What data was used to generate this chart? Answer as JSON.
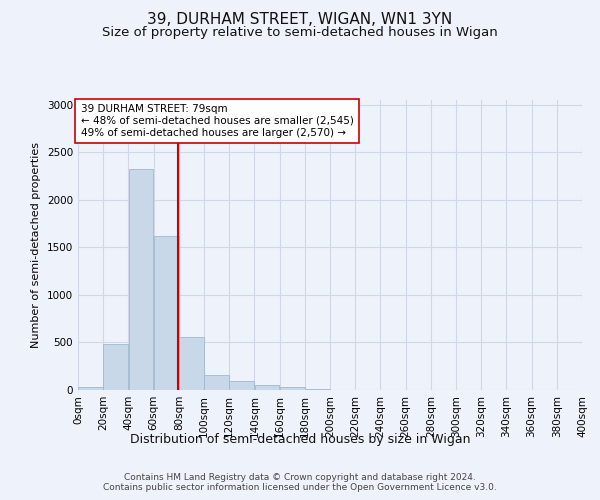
{
  "title": "39, DURHAM STREET, WIGAN, WN1 3YN",
  "subtitle": "Size of property relative to semi-detached houses in Wigan",
  "xlabel": "Distribution of semi-detached houses by size in Wigan",
  "ylabel": "Number of semi-detached properties",
  "bar_edges": [
    0,
    20,
    40,
    60,
    80,
    100,
    120,
    140,
    160,
    180,
    200,
    220,
    240,
    260,
    280,
    300,
    320,
    340,
    360,
    380,
    400
  ],
  "bar_heights": [
    30,
    480,
    2320,
    1620,
    560,
    155,
    90,
    55,
    35,
    10,
    5,
    2,
    0,
    0,
    0,
    0,
    0,
    0,
    0,
    0
  ],
  "bar_color": "#c8d8e8",
  "bar_edgecolor": "#a0b8d0",
  "property_size": 79,
  "vline_color": "#cc0000",
  "annotation_text": "39 DURHAM STREET: 79sqm\n← 48% of semi-detached houses are smaller (2,545)\n49% of semi-detached houses are larger (2,570) →",
  "annotation_box_edgecolor": "#cc0000",
  "annotation_box_facecolor": "#ffffff",
  "ylim": [
    0,
    3050
  ],
  "xlim": [
    0,
    400
  ],
  "grid_color": "#d0d8e8",
  "background_color": "#eef2fa",
  "tick_labels": [
    "0sqm",
    "20sqm",
    "40sqm",
    "60sqm",
    "80sqm",
    "100sqm",
    "120sqm",
    "140sqm",
    "160sqm",
    "180sqm",
    "200sqm",
    "220sqm",
    "240sqm",
    "260sqm",
    "280sqm",
    "300sqm",
    "320sqm",
    "340sqm",
    "360sqm",
    "380sqm",
    "400sqm"
  ],
  "footer_text": "Contains HM Land Registry data © Crown copyright and database right 2024.\nContains public sector information licensed under the Open Government Licence v3.0.",
  "title_fontsize": 11,
  "subtitle_fontsize": 9.5,
  "xlabel_fontsize": 9,
  "ylabel_fontsize": 8,
  "tick_fontsize": 7.5,
  "footer_fontsize": 6.5,
  "annotation_fontsize": 7.5
}
